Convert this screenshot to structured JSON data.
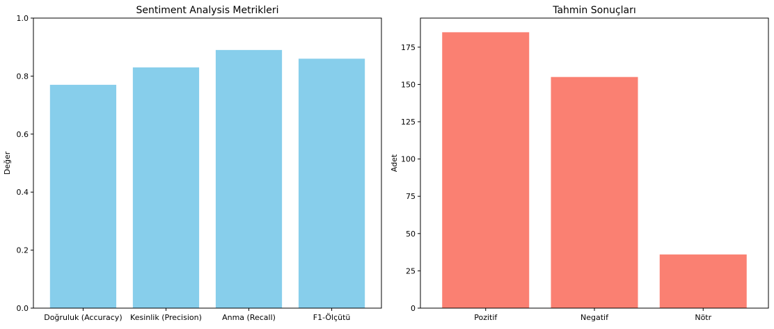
{
  "chart_data": [
    {
      "type": "bar",
      "title": "Sentiment Analysis Metrikleri",
      "xlabel": "",
      "ylabel": "Değer",
      "categories": [
        "Doğruluk (Accuracy)",
        "Kesinlik (Precision)",
        "Anma (Recall)",
        "F1-Ölçütü"
      ],
      "values": [
        0.77,
        0.83,
        0.89,
        0.86
      ],
      "ylim": [
        0,
        1.0
      ],
      "yticks": [
        0.0,
        0.2,
        0.4,
        0.6,
        0.8,
        1.0
      ],
      "ytick_labels": [
        "0.0",
        "0.2",
        "0.4",
        "0.6",
        "0.8",
        "1.0"
      ],
      "bar_color": "#87ceeb",
      "grid": false
    },
    {
      "type": "bar",
      "title": "Tahmin Sonuçları",
      "xlabel": "",
      "ylabel": "Adet",
      "categories": [
        "Pozitif",
        "Negatif",
        "Nötr"
      ],
      "values": [
        185,
        155,
        36
      ],
      "ylim": [
        0,
        194.5
      ],
      "yticks": [
        0,
        25,
        50,
        75,
        100,
        125,
        150,
        175
      ],
      "ytick_labels": [
        "0",
        "25",
        "50",
        "75",
        "100",
        "125",
        "150",
        "175"
      ],
      "bar_color": "#fa8072",
      "grid": false
    }
  ]
}
